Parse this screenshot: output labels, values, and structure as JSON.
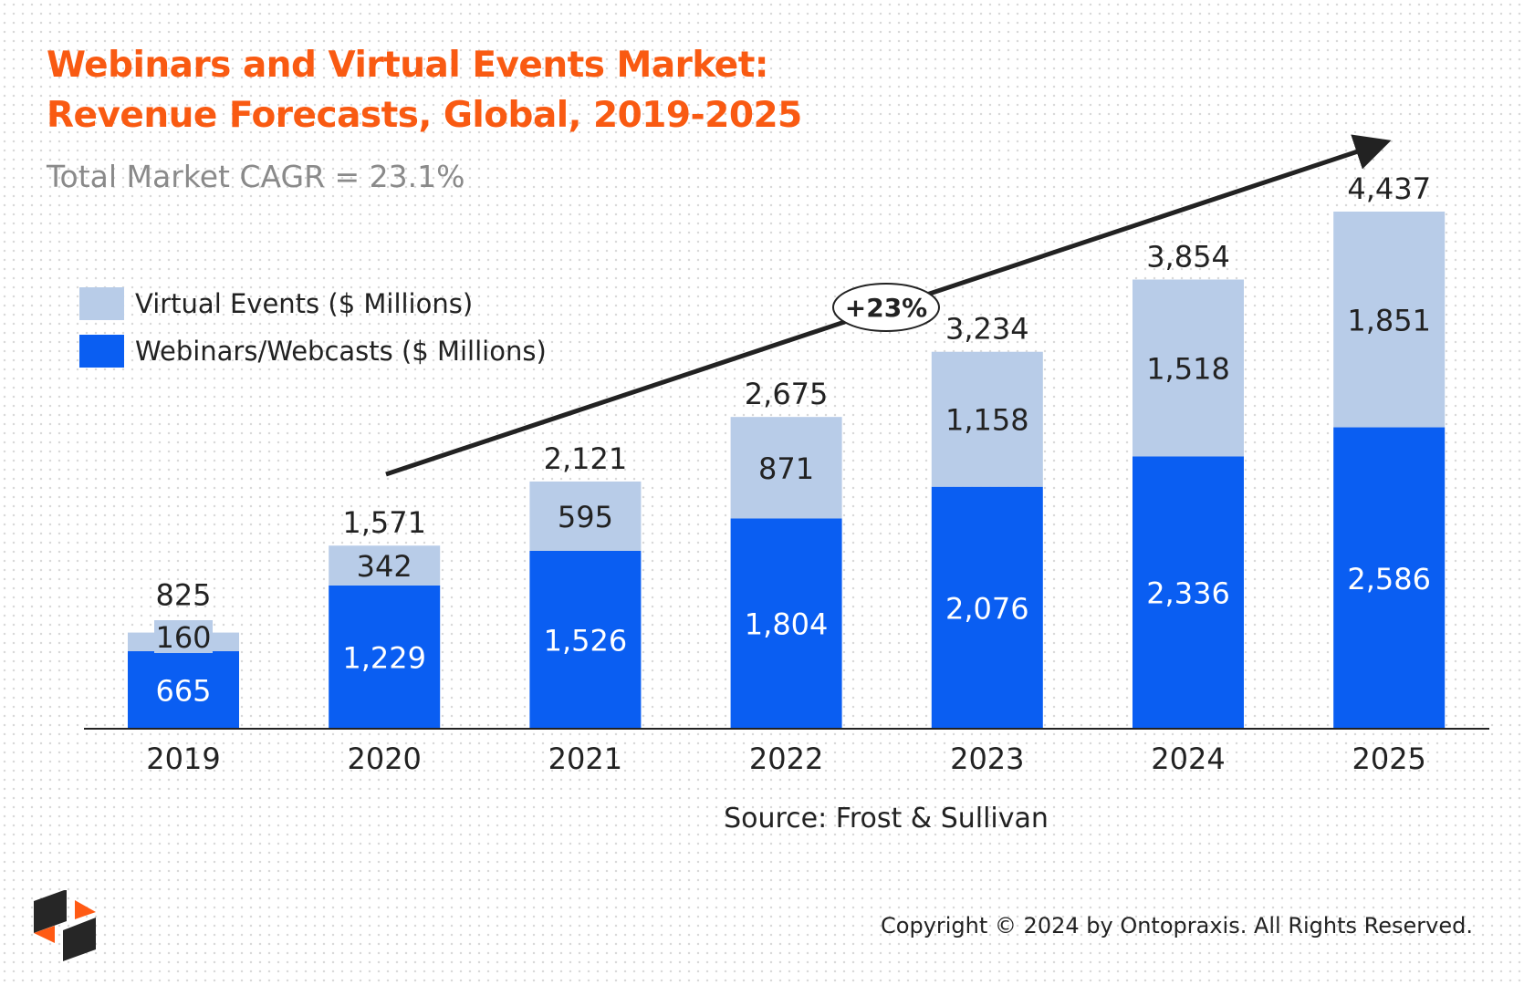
{
  "title_line1": "Webinars and Virtual Events Market:",
  "title_line2": "Revenue Forecasts, Global, 2019-2025",
  "subtitle": "Total Market CAGR = 23.1%",
  "growth_annotation": "+23%",
  "source": "Source: Frost & Sullivan",
  "copyright": "Copyright © 2024 by Ontopraxis. All Rights Reserved.",
  "logo_text": "Ontopraxis",
  "colors": {
    "title": "#F95A12",
    "webinars": "#0A5EF2",
    "virtual": "#B8CCE8",
    "logo_orange": "#FF5A14",
    "logo_dark": "#262626"
  },
  "chart_data": {
    "type": "bar",
    "stacked": true,
    "categories": [
      "2019",
      "2020",
      "2021",
      "2022",
      "2023",
      "2024",
      "2025"
    ],
    "series": [
      {
        "name": "Webinars/Webcasts ($ Millions)",
        "values": [
          665,
          1229,
          1526,
          1804,
          2076,
          2336,
          2586
        ],
        "labels": [
          "665",
          "1,229",
          "1,526",
          "1,804",
          "2,076",
          "2,336",
          "2,586"
        ]
      },
      {
        "name": "Virtual Events ($ Millions)",
        "values": [
          160,
          342,
          595,
          871,
          1158,
          1518,
          1851
        ],
        "labels": [
          "160",
          "342",
          "595",
          "871",
          "1,158",
          "1,518",
          "1,851"
        ]
      }
    ],
    "totals": [
      825,
      1571,
      2121,
      2675,
      3234,
      3854,
      4437
    ],
    "total_labels": [
      "825",
      "1,571",
      "2,121",
      "2,675",
      "3,234",
      "3,854",
      "4,437"
    ],
    "ylim": [
      0,
      4437
    ],
    "grid": false,
    "legend_position": "top-left"
  }
}
